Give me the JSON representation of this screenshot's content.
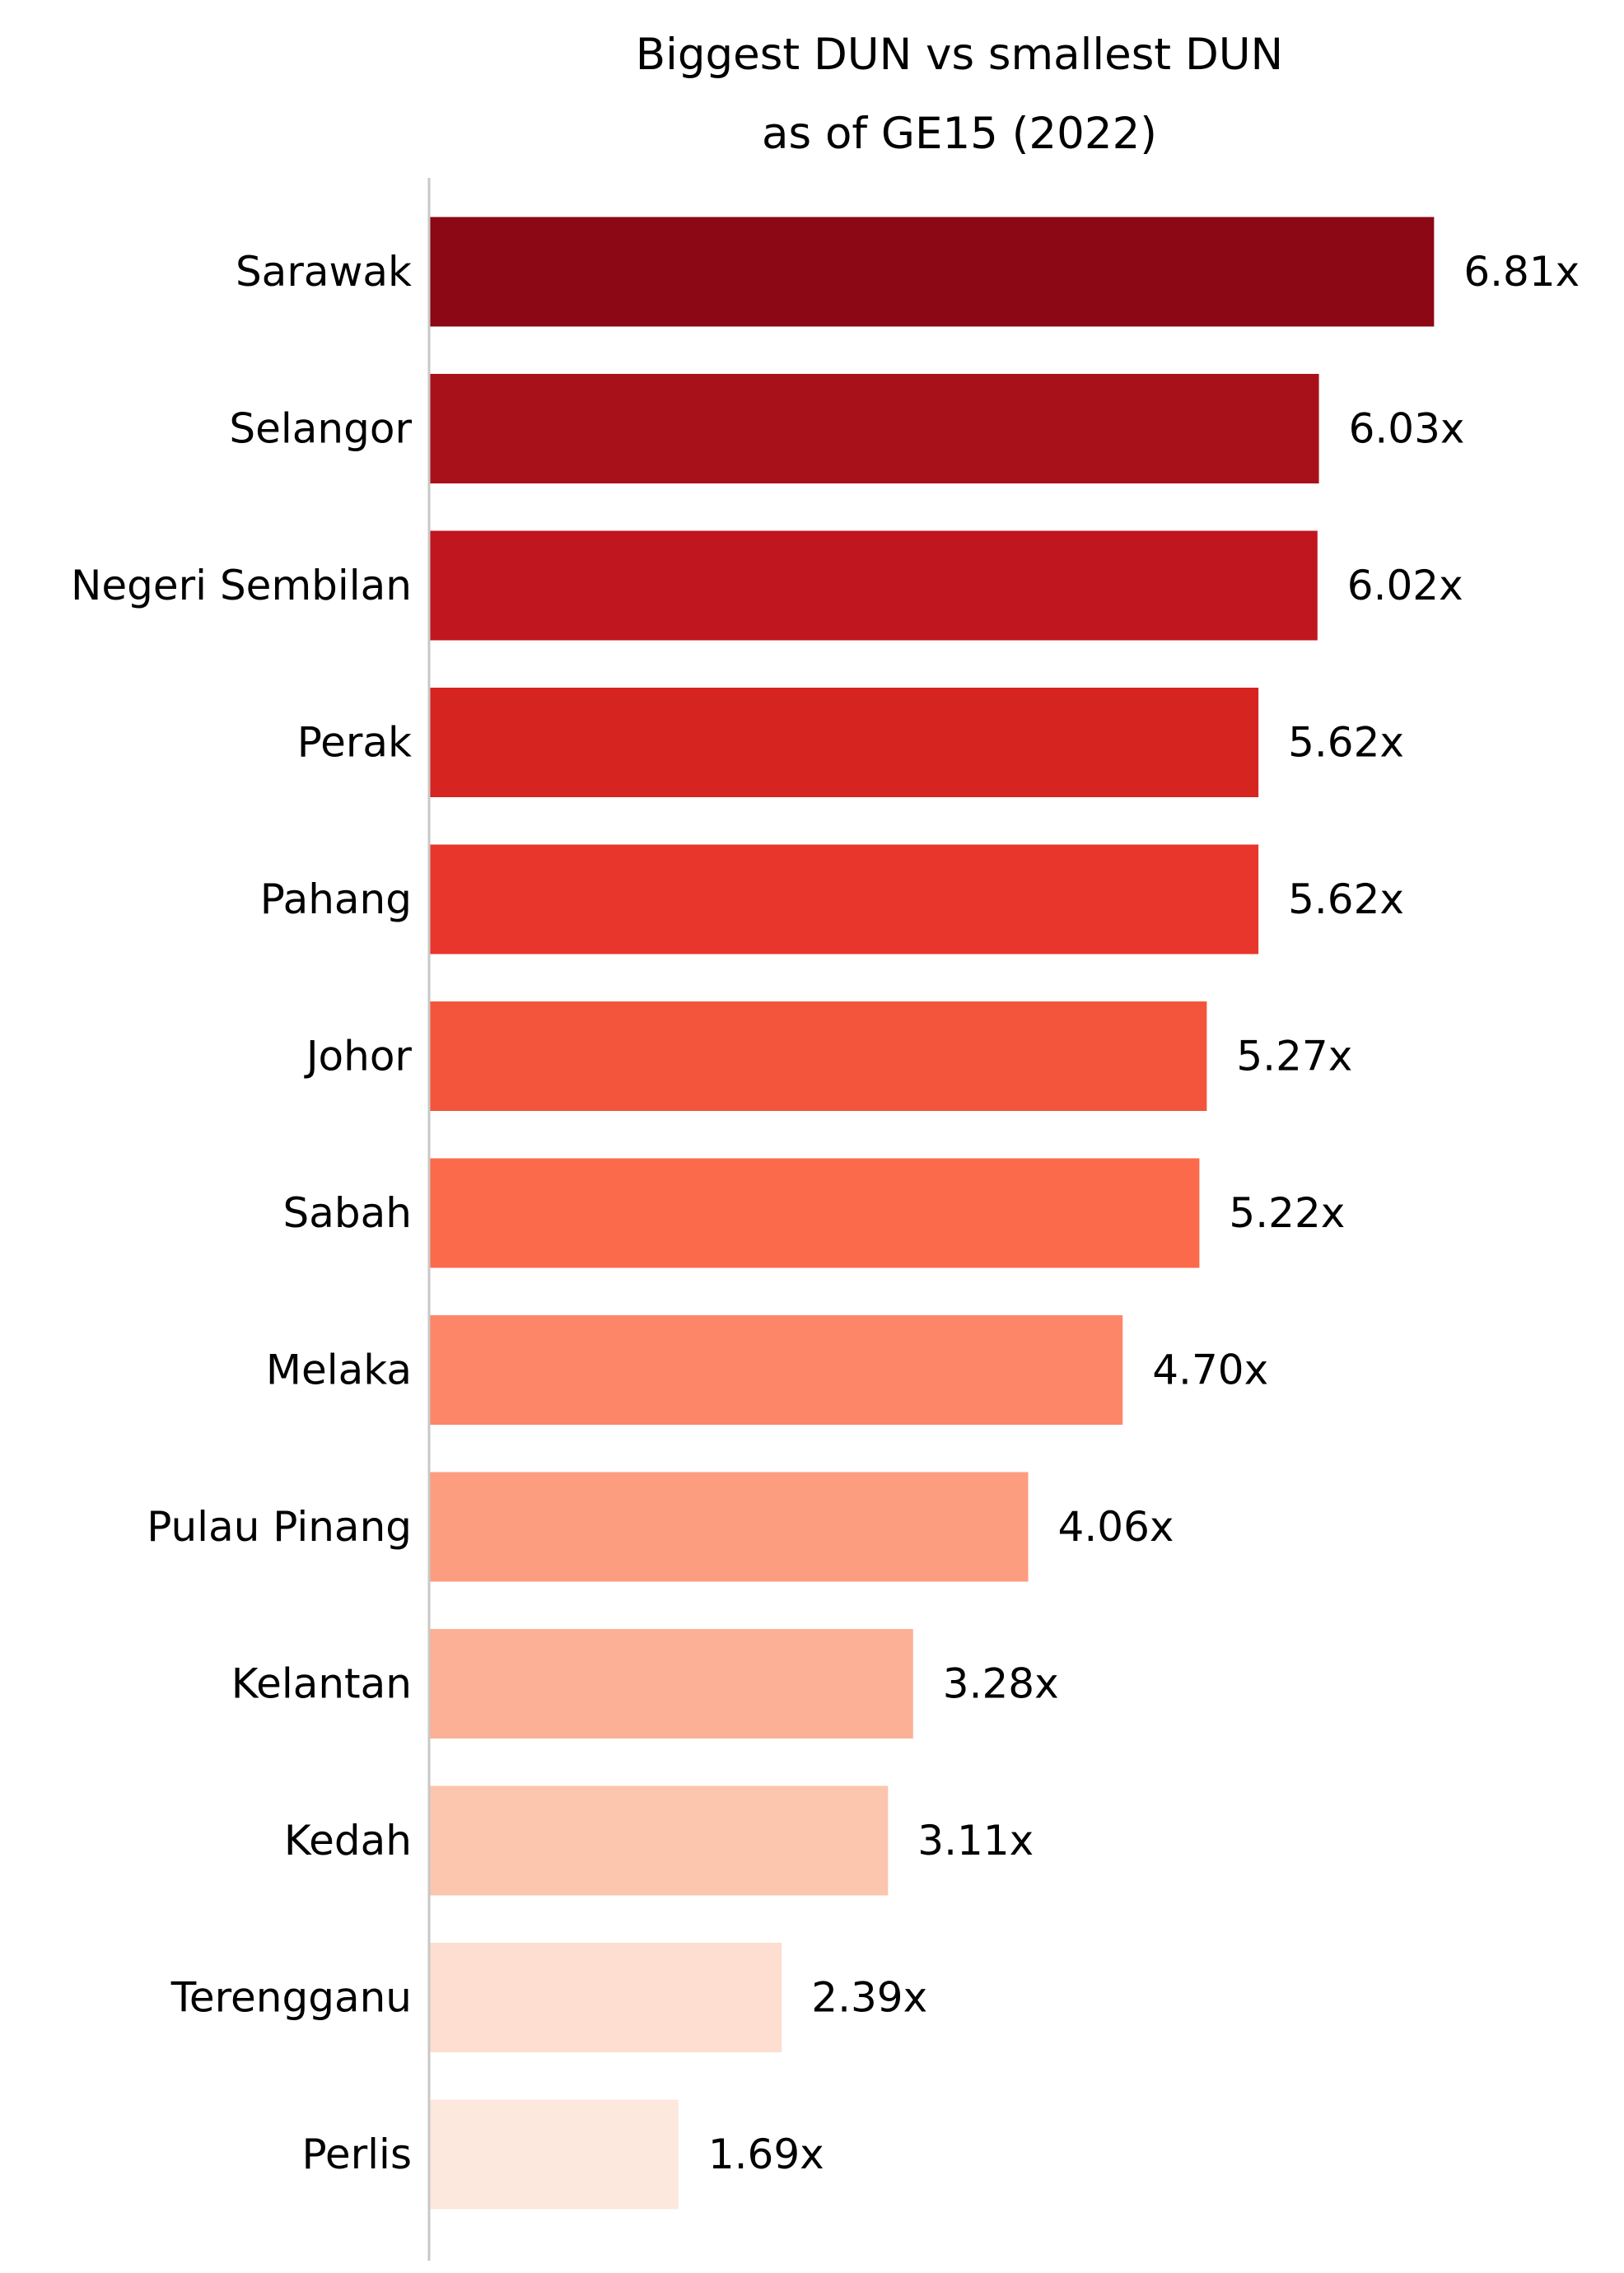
{
  "chart_data": {
    "type": "bar",
    "orientation": "horizontal",
    "title": "Biggest DUN vs smallest DUN",
    "subtitle": "as of GE15 (2022)",
    "xlabel": "",
    "ylabel": "",
    "grid": false,
    "legend": "none",
    "xlim": [
      0,
      7.2
    ],
    "categories": [
      "Sarawak",
      "Selangor",
      "Negeri Sembilan",
      "Perak",
      "Pahang",
      "Johor",
      "Sabah",
      "Melaka",
      "Pulau Pinang",
      "Kelantan",
      "Kedah",
      "Terengganu",
      "Perlis"
    ],
    "values": [
      6.81,
      6.03,
      6.02,
      5.62,
      5.62,
      5.27,
      5.22,
      4.7,
      4.06,
      3.28,
      3.11,
      2.39,
      1.69
    ],
    "value_labels": [
      "6.81x",
      "6.03x",
      "6.02x",
      "5.62x",
      "5.62x",
      "5.27x",
      "5.22x",
      "4.70x",
      "4.06x",
      "3.28x",
      "3.11x",
      "2.39x",
      "1.69x"
    ],
    "colors": [
      "#8b0814",
      "#a9111a",
      "#c0161f",
      "#d62421",
      "#e8362c",
      "#f3553c",
      "#fb6b4b",
      "#fc8667",
      "#fc9d7f",
      "#fcb096",
      "#fcc5ad",
      "#fdded1",
      "#fce8dd"
    ],
    "axis_color": "#c8c8c8"
  }
}
